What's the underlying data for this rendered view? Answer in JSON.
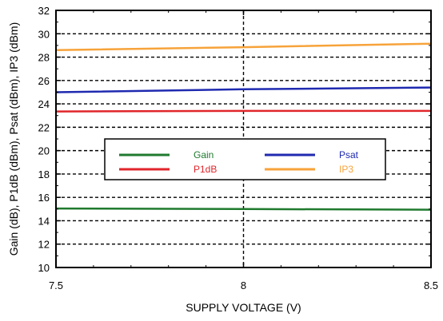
{
  "chart_data": {
    "type": "line",
    "title": "",
    "xlabel": "SUPPLY VOLTAGE (V)",
    "ylabel": "Gain (dB), P1dB (dBm), Psat (dBm), IP3 (dBm)",
    "xlim": [
      7.5,
      8.5
    ],
    "ylim": [
      10,
      32
    ],
    "x_ticks": [
      "7.5",
      "8",
      "8.5"
    ],
    "y_ticks": [
      "10",
      "12",
      "14",
      "16",
      "18",
      "20",
      "22",
      "24",
      "26",
      "28",
      "30",
      "32"
    ],
    "grid": true,
    "legend_placement": "center-left",
    "x": [
      7.5,
      8,
      8.5
    ],
    "series": [
      {
        "name": "Gain",
        "color": "#1f7a2e",
        "values": [
          15.05,
          15.0,
          14.95
        ]
      },
      {
        "name": "P1dB",
        "color": "#e0262b",
        "values": [
          23.35,
          23.4,
          23.4
        ]
      },
      {
        "name": "Psat",
        "color": "#1f2ab0",
        "values": [
          25.0,
          25.25,
          25.4
        ]
      },
      {
        "name": "IP3",
        "color": "#f7a33a",
        "values": [
          28.6,
          28.85,
          29.15
        ]
      }
    ]
  }
}
